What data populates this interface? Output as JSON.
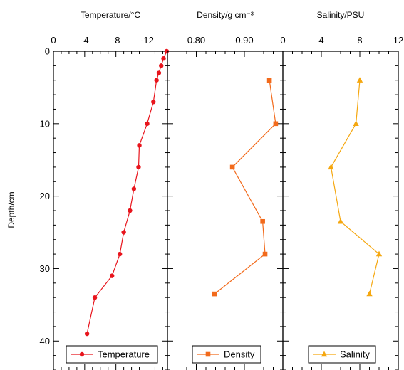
{
  "ylabel": "Depth/cm",
  "chart_data": [
    {
      "type": "line",
      "title": "Temperature/°C",
      "xlabel": "Temperature/°C",
      "ylabel": "Depth/cm",
      "x_ticks": [
        0,
        -4,
        -8,
        -12
      ],
      "x_tick_labels": [
        "0",
        "-4",
        "-8",
        "-12"
      ],
      "xlim": [
        0,
        -14.6
      ],
      "ylim": [
        0,
        44
      ],
      "y_ticks": [
        0,
        10,
        20,
        30,
        40
      ],
      "y_tick_labels": [
        "0",
        "10",
        "20",
        "30",
        "40"
      ],
      "grid": false,
      "legend": "bottom",
      "marker": "circle",
      "color": "#e8141c",
      "series": [
        {
          "name": "Temperature",
          "x": [
            -14.5,
            -14.1,
            -13.8,
            -13.5,
            -13.2,
            -12.8,
            -12.0,
            -11.0,
            -10.9,
            -10.3,
            -9.8,
            -9.0,
            -8.5,
            -7.5,
            -5.3,
            -4.3
          ],
          "y": [
            0,
            1,
            2,
            3,
            4,
            7,
            10,
            13,
            16,
            19,
            22,
            25,
            28,
            31,
            34,
            39
          ]
        }
      ]
    },
    {
      "type": "line",
      "title": "Density/g cm⁻³",
      "xlabel": "Density/g cm⁻³",
      "ylabel": "Depth/cm",
      "x_ticks": [
        0.8,
        0.9
      ],
      "x_tick_labels": [
        "0.80",
        "0.90"
      ],
      "xlim": [
        0.74,
        0.98
      ],
      "ylim": [
        0,
        44
      ],
      "grid": false,
      "legend": "bottom",
      "marker": "square",
      "color": "#f26a1b",
      "series": [
        {
          "name": "Density",
          "x": [
            0.952,
            0.965,
            0.875,
            0.938,
            0.943,
            0.838
          ],
          "y": [
            4,
            10,
            16,
            23.5,
            28,
            33.5
          ]
        }
      ]
    },
    {
      "type": "line",
      "title": "Salinity/PSU",
      "xlabel": "Salinity/PSU",
      "ylabel": "Depth/cm",
      "x_ticks": [
        0,
        4,
        8,
        12
      ],
      "x_tick_labels": [
        "0",
        "4",
        "8",
        "12"
      ],
      "xlim": [
        0,
        12
      ],
      "ylim": [
        0,
        44
      ],
      "grid": false,
      "legend": "bottom",
      "marker": "triangle",
      "color": "#f5a70f",
      "series": [
        {
          "name": "Salinity",
          "x": [
            8.0,
            7.6,
            5.0,
            6.0,
            10.0,
            9.0
          ],
          "y": [
            4,
            10,
            16,
            23.5,
            28,
            33.5
          ]
        }
      ]
    }
  ]
}
